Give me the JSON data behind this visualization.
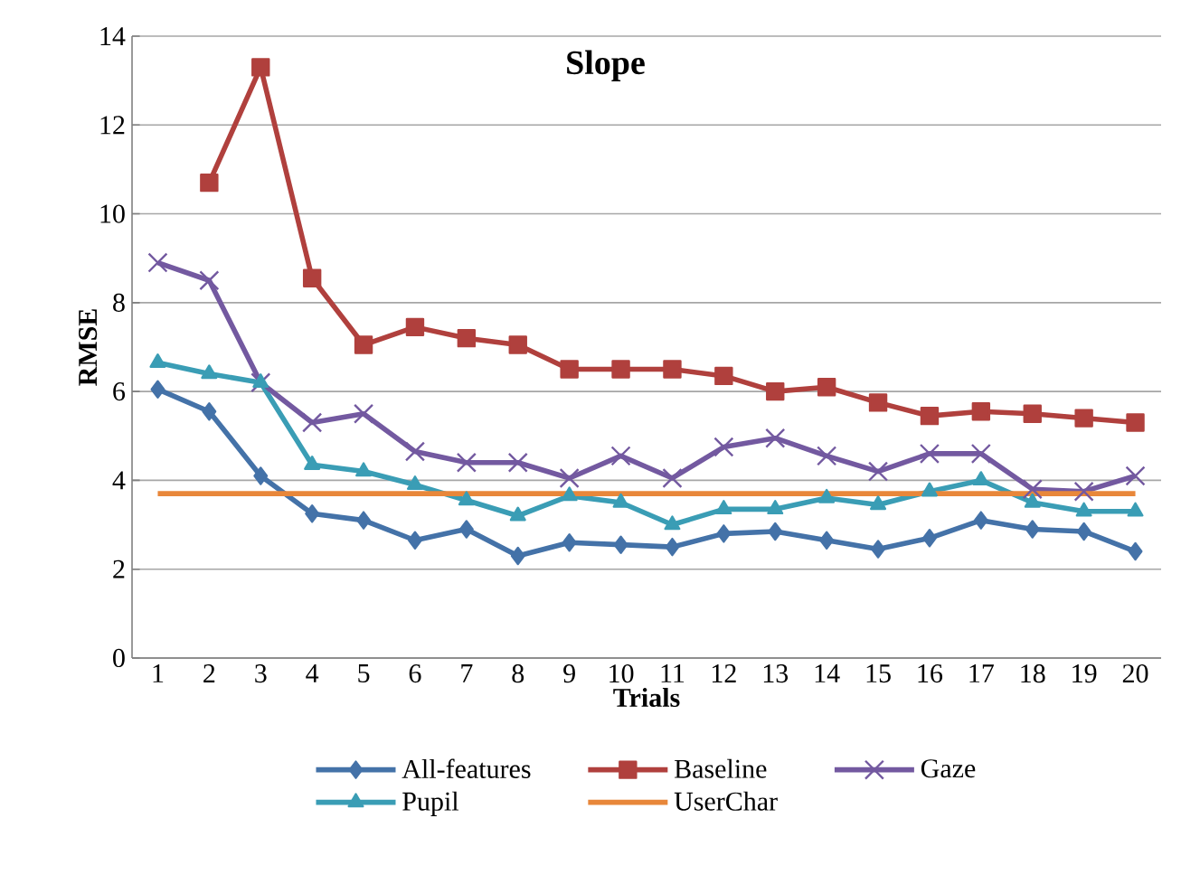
{
  "chart_data": {
    "type": "line",
    "title": "Slope",
    "xlabel": "Trials",
    "ylabel": "RMSE",
    "categories": [
      "1",
      "2",
      "3",
      "4",
      "5",
      "6",
      "7",
      "8",
      "9",
      "10",
      "11",
      "12",
      "13",
      "14",
      "15",
      "16",
      "17",
      "18",
      "19",
      "20"
    ],
    "ylim": [
      0,
      14
    ],
    "yticks": [
      0,
      2,
      4,
      6,
      8,
      10,
      12,
      14
    ],
    "grid": "y",
    "legend": "bottom",
    "series": [
      {
        "name": "All-features",
        "color": "#4472a8",
        "marker": "diamond",
        "values": [
          6.05,
          5.55,
          4.1,
          3.25,
          3.1,
          2.65,
          2.9,
          2.3,
          2.6,
          2.55,
          2.5,
          2.8,
          2.85,
          2.65,
          2.45,
          2.7,
          3.1,
          2.9,
          2.85,
          2.4
        ]
      },
      {
        "name": "Baseline",
        "color": "#b0403d",
        "marker": "square",
        "values": [
          null,
          10.7,
          13.3,
          8.55,
          7.05,
          7.45,
          7.2,
          7.05,
          6.5,
          6.5,
          6.5,
          6.35,
          6.0,
          6.1,
          5.75,
          5.45,
          5.55,
          5.5,
          5.4,
          5.3
        ]
      },
      {
        "name": "Gaze",
        "color": "#7359a0",
        "marker": "cross",
        "values": [
          8.9,
          8.5,
          6.2,
          5.3,
          5.5,
          4.65,
          4.4,
          4.4,
          4.05,
          4.55,
          4.05,
          4.75,
          4.95,
          4.55,
          4.2,
          4.6,
          4.6,
          3.8,
          3.75,
          4.1
        ]
      },
      {
        "name": "Pupil",
        "color": "#3a9db5",
        "marker": "triangle",
        "values": [
          6.65,
          6.4,
          6.2,
          4.35,
          4.2,
          3.9,
          3.55,
          3.2,
          3.65,
          3.5,
          3.0,
          3.35,
          3.35,
          3.6,
          3.45,
          3.75,
          4.0,
          3.5,
          3.3,
          3.3
        ]
      },
      {
        "name": "UserChar",
        "color": "#e8873a",
        "marker": "none",
        "values": [
          3.7,
          3.7,
          3.7,
          3.7,
          3.7,
          3.7,
          3.7,
          3.7,
          3.7,
          3.7,
          3.7,
          3.7,
          3.7,
          3.7,
          3.7,
          3.7,
          3.7,
          3.7,
          3.7,
          3.7
        ]
      }
    ]
  }
}
